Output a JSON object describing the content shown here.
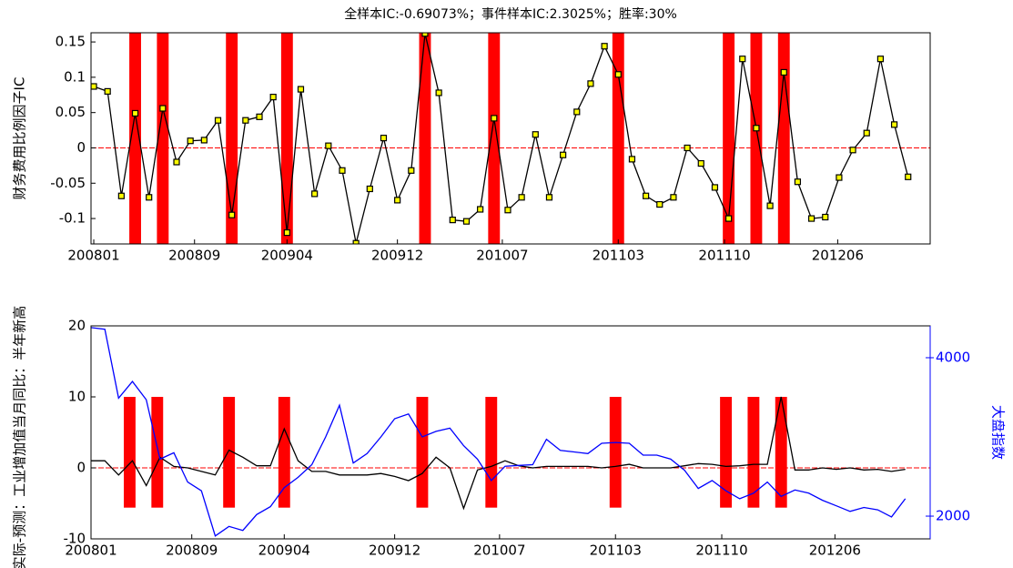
{
  "chart_data": [
    {
      "type": "line",
      "title": "全样本IC:-0.69073%；事件样本IC:2.3025%；胜率:30%",
      "ylabel": "财务费用比例因子IC",
      "x": [
        1,
        2,
        3,
        4,
        5,
        6,
        7,
        8,
        9,
        10,
        11,
        12,
        13,
        14,
        15,
        16,
        17,
        18,
        19,
        20,
        21,
        22,
        23,
        24,
        25,
        26,
        27,
        28,
        29,
        30,
        31,
        32,
        33,
        34,
        35,
        36,
        37,
        38,
        39,
        40,
        41,
        42,
        43,
        44,
        45,
        46,
        47,
        48,
        49,
        50,
        51,
        52,
        53,
        54,
        55,
        56,
        57,
        58,
        59,
        60
      ],
      "series": [
        {
          "color": "#000000",
          "marker_color": "#ffff00",
          "values": [
            0.087,
            0.08,
            -0.068,
            0.049,
            -0.07,
            0.056,
            -0.02,
            0.01,
            0.011,
            0.039,
            -0.095,
            0.039,
            0.044,
            0.072,
            -0.12,
            0.083,
            -0.065,
            0.003,
            -0.032,
            -0.135,
            -0.058,
            0.014,
            -0.074,
            -0.032,
            0.162,
            0.078,
            -0.102,
            -0.104,
            -0.087,
            0.042,
            -0.088,
            -0.07,
            0.019,
            -0.07,
            -0.01,
            0.051,
            0.091,
            0.144,
            0.104,
            -0.016,
            -0.068,
            -0.08,
            -0.07,
            0.0,
            -0.022,
            -0.056,
            -0.1,
            0.126,
            0.028,
            -0.082,
            0.107,
            -0.048,
            -0.1,
            -0.098,
            -0.042,
            -0.003,
            0.021,
            0.126,
            0.033,
            -0.041
          ]
        }
      ],
      "xlim": [
        0.8,
        61.6
      ],
      "xticks": [
        {
          "value": 1,
          "label": "200801"
        },
        {
          "value": 8.3,
          "label": "200809"
        },
        {
          "value": 15,
          "label": "200904"
        },
        {
          "value": 23,
          "label": "200912"
        },
        {
          "value": 30.6,
          "label": "201007"
        },
        {
          "value": 39,
          "label": "201103"
        },
        {
          "value": 46.7,
          "label": "201110"
        },
        {
          "value": 54.9,
          "label": "201206"
        }
      ],
      "ylim": [
        -0.136,
        0.163
      ],
      "yticks": [
        -0.1,
        -0.05,
        0,
        0.05,
        0.1,
        0.15
      ],
      "highlight_x": [
        4,
        6,
        11,
        15,
        25,
        30,
        39,
        47,
        49,
        51
      ],
      "highlight_color": "#ff0000",
      "reference_line": 0,
      "reference_color": "#ff0000"
    },
    {
      "type": "line",
      "ylabel": "实际-预测：工业增加值当月同比：半年新高",
      "y2label": "大盘指数",
      "x": [
        1,
        2,
        3,
        4,
        5,
        6,
        7,
        8,
        9,
        10,
        11,
        12,
        13,
        14,
        15,
        16,
        17,
        18,
        19,
        20,
        21,
        22,
        23,
        24,
        25,
        26,
        27,
        28,
        29,
        30,
        31,
        32,
        33,
        34,
        35,
        36,
        37,
        38,
        39,
        40,
        41,
        42,
        43,
        44,
        45,
        46,
        47,
        48,
        49,
        50,
        51,
        52,
        53,
        54,
        55,
        56,
        57,
        58,
        59,
        60
      ],
      "series": [
        {
          "color": "#000000",
          "values": [
            1,
            1,
            -1,
            1,
            -2.5,
            1.5,
            0.2,
            0,
            -0.5,
            -1,
            2.5,
            1.5,
            0.3,
            0.3,
            5.5,
            1,
            -0.5,
            -0.5,
            -1,
            -1,
            -1,
            -0.8,
            -1.2,
            -1.8,
            -0.8,
            1.5,
            0,
            -5.7,
            -0.3,
            0.2,
            1,
            0.3,
            0,
            0.2,
            0.2,
            0.2,
            0.2,
            0,
            0.2,
            0.5,
            0,
            0,
            0,
            0.3,
            0.6,
            0.5,
            0.2,
            0.3,
            0.5,
            0.5,
            10,
            -0.3,
            -0.3,
            0,
            -0.2,
            0,
            -0.3,
            -0.2,
            -0.5,
            -0.2
          ]
        },
        {
          "color": "#0000ff",
          "axis": "y2",
          "values": [
            4380,
            4360,
            3490,
            3700,
            3470,
            2720,
            2800,
            2430,
            2320,
            1750,
            1870,
            1820,
            2020,
            2120,
            2360,
            2490,
            2650,
            3000,
            3400,
            2670,
            2790,
            3000,
            3230,
            3290,
            3000,
            3070,
            3110,
            2890,
            2720,
            2450,
            2630,
            2640,
            2650,
            2970,
            2830,
            2810,
            2790,
            2920,
            2930,
            2920,
            2770,
            2770,
            2720,
            2580,
            2350,
            2450,
            2320,
            2220,
            2290,
            2430,
            2250,
            2330,
            2290,
            2200,
            2130,
            2060,
            2110,
            2080,
            1990,
            2220
          ]
        }
      ],
      "xlim": [
        1,
        61.8
      ],
      "xticks": [
        {
          "value": 1,
          "label": "200801"
        },
        {
          "value": 8.3,
          "label": "200809"
        },
        {
          "value": 15,
          "label": "200904"
        },
        {
          "value": 23,
          "label": "200912"
        },
        {
          "value": 30.6,
          "label": "201007"
        },
        {
          "value": 39,
          "label": "201103"
        },
        {
          "value": 46.7,
          "label": "201110"
        },
        {
          "value": 54.9,
          "label": "201206"
        }
      ],
      "ylim": [
        -10,
        20
      ],
      "yticks": [
        -10,
        0,
        10,
        20
      ],
      "y2lim": [
        1713,
        4402
      ],
      "y2ticks": [
        2000,
        4000
      ],
      "y2color": "#0000ff",
      "highlight_x": [
        3.8,
        5.8,
        11,
        15,
        25,
        30,
        39,
        47,
        49,
        51
      ],
      "highlight_range": [
        -5.6,
        10
      ],
      "highlight_color": "#ff0000",
      "reference_line": 0,
      "reference_color": "#ff0000"
    }
  ]
}
